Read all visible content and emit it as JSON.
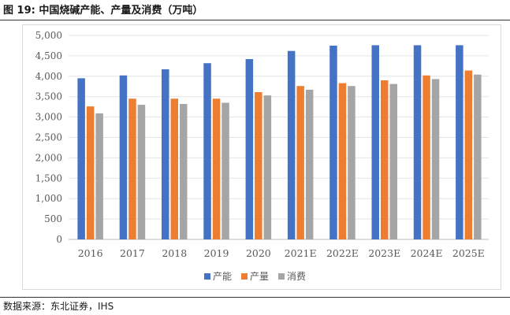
{
  "figure_title": "图 19: 中国烧碱产能、产量及消费（万吨）",
  "source": "数据来源：东北证券，IHS",
  "chart_data": {
    "type": "bar",
    "title": "",
    "xlabel": "",
    "ylabel": "",
    "ylim": [
      0,
      5000
    ],
    "yticks": [
      0,
      500,
      1000,
      1500,
      2000,
      2500,
      3000,
      3500,
      4000,
      4500,
      5000
    ],
    "ytick_labels": [
      "0",
      "500",
      "1,000",
      "1,500",
      "2,000",
      "2,500",
      "3,000",
      "3,500",
      "4,000",
      "4,500",
      "5,000"
    ],
    "grid": true,
    "legend_position": "bottom",
    "categories": [
      "2016",
      "2017",
      "2018",
      "2019",
      "2020",
      "2021E",
      "2022E",
      "2023E",
      "2024E",
      "2025E"
    ],
    "series": [
      {
        "name": "产能",
        "color": "#4472C4",
        "values": [
          3950,
          4020,
          4170,
          4320,
          4420,
          4620,
          4750,
          4760,
          4760,
          4760
        ]
      },
      {
        "name": "产量",
        "color": "#ED7D31",
        "values": [
          3260,
          3450,
          3450,
          3450,
          3610,
          3760,
          3830,
          3900,
          4020,
          4140
        ]
      },
      {
        "name": "消费",
        "color": "#A5A5A5",
        "values": [
          3090,
          3300,
          3320,
          3350,
          3530,
          3670,
          3760,
          3810,
          3930,
          4040
        ]
      }
    ]
  }
}
